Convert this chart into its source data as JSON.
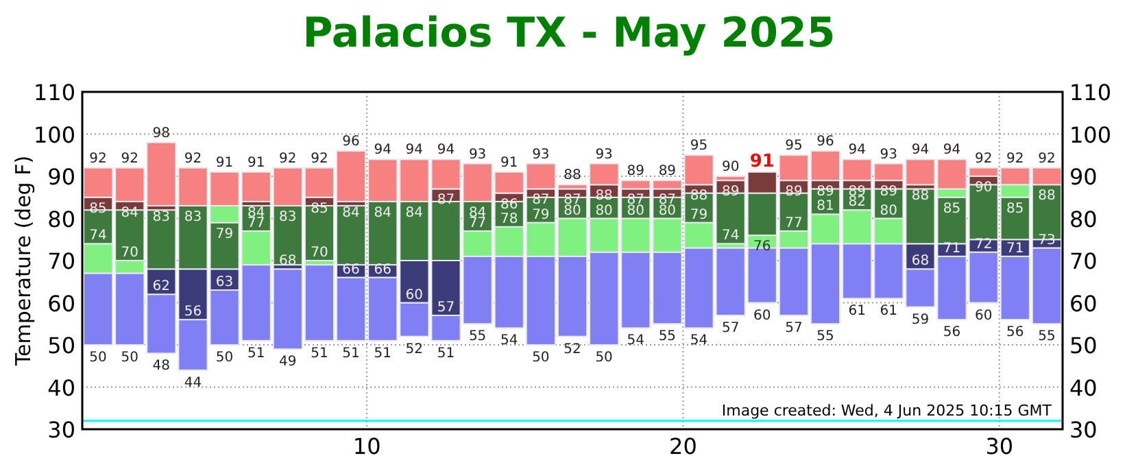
{
  "chart_data": {
    "type": "bar",
    "title": "Palacios TX - May 2025",
    "ylabel": "Temperature (deg F)",
    "x": [
      1,
      2,
      3,
      4,
      5,
      6,
      7,
      8,
      9,
      10,
      11,
      12,
      13,
      14,
      15,
      16,
      17,
      18,
      19,
      20,
      21,
      22,
      23,
      24,
      25,
      26,
      27,
      28,
      29,
      30,
      31
    ],
    "stacked": false,
    "xlim": [
      1,
      32
    ],
    "xticks": [
      10,
      20,
      30
    ],
    "ylim": [
      30,
      110
    ],
    "yticks": [
      30,
      40,
      50,
      60,
      70,
      80,
      90,
      100,
      110
    ],
    "y2lim": [
      30,
      110
    ],
    "y2ticks": [
      30,
      40,
      50,
      60,
      70,
      80,
      90,
      100,
      110
    ],
    "grid": true,
    "series": [
      {
        "color": "#8080f4",
        "base": [
          50,
          50,
          48,
          44,
          50,
          51,
          49,
          51,
          51,
          51,
          52,
          51,
          55,
          54,
          50,
          52,
          50,
          54,
          55,
          54,
          57,
          60,
          57,
          55,
          61,
          61,
          59,
          56,
          60,
          56,
          55
        ],
        "values": [
          17,
          17,
          14,
          12,
          13,
          18,
          19,
          18,
          15,
          15,
          8,
          6,
          16,
          17,
          21,
          19,
          22,
          18,
          17,
          19,
          16,
          13,
          16,
          19,
          13,
          13,
          9,
          15,
          12,
          15,
          18
        ]
      },
      {
        "color": "#3b3b7a",
        "base": [
          null,
          null,
          62,
          56,
          63,
          null,
          68,
          null,
          66,
          66,
          60,
          57,
          null,
          null,
          null,
          null,
          null,
          null,
          null,
          null,
          null,
          null,
          null,
          null,
          null,
          null,
          68,
          71,
          72,
          71,
          73
        ],
        "values": [
          null,
          null,
          6,
          12,
          5,
          null,
          1,
          null,
          3,
          3,
          10,
          13,
          null,
          null,
          null,
          null,
          null,
          null,
          null,
          null,
          null,
          null,
          null,
          null,
          null,
          null,
          6,
          3,
          3,
          4,
          2
        ]
      },
      {
        "color": "#80f080",
        "base": [
          67,
          67,
          null,
          null,
          null,
          69,
          null,
          69,
          null,
          null,
          null,
          null,
          71,
          71,
          71,
          71,
          72,
          72,
          72,
          73,
          73,
          73,
          73,
          74,
          74,
          74,
          null,
          null,
          null,
          null,
          null
        ],
        "values": [
          7,
          3,
          null,
          null,
          null,
          8,
          null,
          1,
          null,
          null,
          null,
          null,
          6,
          7,
          8,
          9,
          8,
          8,
          8,
          6,
          1,
          3,
          4,
          7,
          8,
          6,
          null,
          null,
          null,
          null,
          null
        ]
      },
      {
        "color": "#3e7a3e",
        "base": [
          74,
          70,
          68,
          68,
          68,
          77,
          69,
          70,
          69,
          69,
          70,
          70,
          77,
          78,
          79,
          80,
          80,
          80,
          80,
          79,
          74,
          76,
          77,
          81,
          82,
          80,
          74,
          74,
          75,
          75,
          75
        ],
        "values": [
          8,
          12,
          14,
          15,
          11,
          6,
          14,
          13,
          14,
          15,
          14,
          14,
          7,
          6,
          6,
          5,
          5,
          5,
          5,
          7,
          12,
          10,
          9,
          6,
          5,
          7,
          13,
          11,
          13,
          10,
          13
        ]
      },
      {
        "color": "#80f080",
        "base": [
          null,
          null,
          null,
          null,
          79,
          null,
          null,
          null,
          null,
          null,
          null,
          null,
          null,
          null,
          null,
          null,
          null,
          null,
          null,
          null,
          null,
          null,
          null,
          null,
          null,
          null,
          null,
          85,
          null,
          85,
          null
        ],
        "values": [
          null,
          null,
          null,
          null,
          4,
          null,
          null,
          null,
          null,
          null,
          null,
          null,
          null,
          null,
          null,
          null,
          null,
          null,
          null,
          null,
          null,
          null,
          null,
          null,
          null,
          null,
          null,
          2,
          null,
          3,
          null
        ]
      },
      {
        "color": "#7a3b3b",
        "base": [
          82,
          82,
          82,
          null,
          null,
          83,
          null,
          83,
          83,
          null,
          null,
          84,
          null,
          84,
          85,
          85,
          85,
          85,
          85,
          86,
          86,
          86,
          86,
          87,
          87,
          87,
          87,
          null,
          88,
          null,
          null
        ],
        "values": [
          3,
          2,
          1,
          null,
          null,
          1,
          null,
          2,
          1,
          null,
          null,
          3,
          null,
          2,
          2,
          2,
          3,
          2,
          2,
          2,
          3,
          5,
          3,
          2,
          2,
          2,
          1,
          null,
          2,
          null,
          null
        ]
      },
      {
        "color": "#f78181",
        "base": [
          85,
          84,
          83,
          83,
          83,
          84,
          83,
          85,
          84,
          84,
          84,
          87,
          84,
          86,
          87,
          87,
          88,
          87,
          87,
          88,
          89,
          null,
          89,
          89,
          89,
          89,
          88,
          87,
          90,
          88,
          88
        ],
        "values": [
          7,
          8,
          15,
          9,
          8,
          7,
          9,
          7,
          12,
          10,
          10,
          7,
          9,
          5,
          6,
          1,
          5,
          2,
          2,
          7,
          1,
          null,
          6,
          7,
          5,
          4,
          6,
          7,
          2,
          4,
          4
        ]
      }
    ],
    "ref_lines": [
      {
        "axis": "y",
        "value": 32,
        "color": "#00ffff"
      }
    ],
    "annotations": [
      {
        "text": "92",
        "x": 1,
        "y": 92
      },
      {
        "text": "85",
        "x": 1,
        "y": 85
      },
      {
        "text": "74",
        "x": 1,
        "y": 74
      },
      {
        "text": "50",
        "x": 1,
        "y": 50
      },
      {
        "text": "92",
        "x": 2,
        "y": 92
      },
      {
        "text": "84",
        "x": 2,
        "y": 84
      },
      {
        "text": "70",
        "x": 2,
        "y": 70
      },
      {
        "text": "50",
        "x": 2,
        "y": 50
      },
      {
        "text": "98",
        "x": 3,
        "y": 98
      },
      {
        "text": "83",
        "x": 3,
        "y": 83
      },
      {
        "text": "62",
        "x": 3,
        "y": 62
      },
      {
        "text": "48",
        "x": 3,
        "y": 48
      },
      {
        "text": "92",
        "x": 4,
        "y": 92
      },
      {
        "text": "83",
        "x": 4,
        "y": 83
      },
      {
        "text": "56",
        "x": 4,
        "y": 56
      },
      {
        "text": "44",
        "x": 4,
        "y": 44
      },
      {
        "text": "91",
        "x": 5,
        "y": 91
      },
      {
        "text": "79",
        "x": 5,
        "y": 79
      },
      {
        "text": "63",
        "x": 5,
        "y": 63
      },
      {
        "text": "50",
        "x": 5,
        "y": 50
      },
      {
        "text": "91",
        "x": 6,
        "y": 91
      },
      {
        "text": "84",
        "x": 6,
        "y": 84
      },
      {
        "text": "77",
        "x": 6,
        "y": 77
      },
      {
        "text": "51",
        "x": 6,
        "y": 51
      },
      {
        "text": "92",
        "x": 7,
        "y": 92
      },
      {
        "text": "83",
        "x": 7,
        "y": 83
      },
      {
        "text": "68",
        "x": 7,
        "y": 68
      },
      {
        "text": "49",
        "x": 7,
        "y": 49
      },
      {
        "text": "92",
        "x": 8,
        "y": 92
      },
      {
        "text": "85",
        "x": 8,
        "y": 85
      },
      {
        "text": "70",
        "x": 8,
        "y": 70
      },
      {
        "text": "51",
        "x": 8,
        "y": 51
      },
      {
        "text": "96",
        "x": 9,
        "y": 96
      },
      {
        "text": "84",
        "x": 9,
        "y": 84
      },
      {
        "text": "66",
        "x": 9,
        "y": 66
      },
      {
        "text": "51",
        "x": 9,
        "y": 51
      },
      {
        "text": "94",
        "x": 10,
        "y": 94
      },
      {
        "text": "84",
        "x": 10,
        "y": 84
      },
      {
        "text": "66",
        "x": 10,
        "y": 66
      },
      {
        "text": "51",
        "x": 10,
        "y": 51
      },
      {
        "text": "94",
        "x": 11,
        "y": 94
      },
      {
        "text": "84",
        "x": 11,
        "y": 84
      },
      {
        "text": "60",
        "x": 11,
        "y": 60
      },
      {
        "text": "52",
        "x": 11,
        "y": 52
      },
      {
        "text": "94",
        "x": 12,
        "y": 94
      },
      {
        "text": "87",
        "x": 12,
        "y": 87
      },
      {
        "text": "57",
        "x": 12,
        "y": 57
      },
      {
        "text": "51",
        "x": 12,
        "y": 51
      },
      {
        "text": "93",
        "x": 13,
        "y": 93
      },
      {
        "text": "84",
        "x": 13,
        "y": 84
      },
      {
        "text": "77",
        "x": 13,
        "y": 77
      },
      {
        "text": "55",
        "x": 13,
        "y": 55
      },
      {
        "text": "91",
        "x": 14,
        "y": 91
      },
      {
        "text": "86",
        "x": 14,
        "y": 86
      },
      {
        "text": "78",
        "x": 14,
        "y": 78
      },
      {
        "text": "54",
        "x": 14,
        "y": 54
      },
      {
        "text": "93",
        "x": 15,
        "y": 93
      },
      {
        "text": "87",
        "x": 15,
        "y": 87
      },
      {
        "text": "79",
        "x": 15,
        "y": 79
      },
      {
        "text": "50",
        "x": 15,
        "y": 50
      },
      {
        "text": "88",
        "x": 16,
        "y": 88
      },
      {
        "text": "87",
        "x": 16,
        "y": 87
      },
      {
        "text": "80",
        "x": 16,
        "y": 80
      },
      {
        "text": "52",
        "x": 16,
        "y": 52
      },
      {
        "text": "93",
        "x": 17,
        "y": 93
      },
      {
        "text": "88",
        "x": 17,
        "y": 88
      },
      {
        "text": "80",
        "x": 17,
        "y": 80
      },
      {
        "text": "50",
        "x": 17,
        "y": 50
      },
      {
        "text": "89",
        "x": 18,
        "y": 89
      },
      {
        "text": "87",
        "x": 18,
        "y": 87
      },
      {
        "text": "80",
        "x": 18,
        "y": 80
      },
      {
        "text": "54",
        "x": 18,
        "y": 54
      },
      {
        "text": "89",
        "x": 19,
        "y": 89
      },
      {
        "text": "87",
        "x": 19,
        "y": 87
      },
      {
        "text": "80",
        "x": 19,
        "y": 80
      },
      {
        "text": "55",
        "x": 19,
        "y": 55
      },
      {
        "text": "95",
        "x": 20,
        "y": 95
      },
      {
        "text": "88",
        "x": 20,
        "y": 88
      },
      {
        "text": "79",
        "x": 20,
        "y": 79
      },
      {
        "text": "54",
        "x": 20,
        "y": 54
      },
      {
        "text": "90",
        "x": 21,
        "y": 90
      },
      {
        "text": "89",
        "x": 21,
        "y": 89
      },
      {
        "text": "74",
        "x": 21,
        "y": 74
      },
      {
        "text": "57",
        "x": 21,
        "y": 57
      },
      {
        "text": "91",
        "x": 22,
        "y": 91
      },
      {
        "text": "76",
        "x": 22,
        "y": 76
      },
      {
        "text": "60",
        "x": 22,
        "y": 60
      },
      {
        "text": "95",
        "x": 23,
        "y": 95
      },
      {
        "text": "89",
        "x": 23,
        "y": 89
      },
      {
        "text": "77",
        "x": 23,
        "y": 77
      },
      {
        "text": "57",
        "x": 23,
        "y": 57
      },
      {
        "text": "96",
        "x": 24,
        "y": 96
      },
      {
        "text": "89",
        "x": 24,
        "y": 89
      },
      {
        "text": "81",
        "x": 24,
        "y": 81
      },
      {
        "text": "55",
        "x": 24,
        "y": 55
      },
      {
        "text": "94",
        "x": 25,
        "y": 94
      },
      {
        "text": "89",
        "x": 25,
        "y": 89
      },
      {
        "text": "82",
        "x": 25,
        "y": 82
      },
      {
        "text": "61",
        "x": 25,
        "y": 61
      },
      {
        "text": "93",
        "x": 26,
        "y": 93
      },
      {
        "text": "89",
        "x": 26,
        "y": 89
      },
      {
        "text": "80",
        "x": 26,
        "y": 80
      },
      {
        "text": "61",
        "x": 26,
        "y": 61
      },
      {
        "text": "94",
        "x": 27,
        "y": 94
      },
      {
        "text": "88",
        "x": 27,
        "y": 88
      },
      {
        "text": "68",
        "x": 27,
        "y": 68
      },
      {
        "text": "59",
        "x": 27,
        "y": 59
      },
      {
        "text": "94",
        "x": 28,
        "y": 94
      },
      {
        "text": "85",
        "x": 28,
        "y": 85
      },
      {
        "text": "71",
        "x": 28,
        "y": 71
      },
      {
        "text": "56",
        "x": 28,
        "y": 56
      },
      {
        "text": "92",
        "x": 29,
        "y": 92
      },
      {
        "text": "90",
        "x": 29,
        "y": 90
      },
      {
        "text": "72",
        "x": 29,
        "y": 72
      },
      {
        "text": "60",
        "x": 29,
        "y": 60
      },
      {
        "text": "92",
        "x": 30,
        "y": 92
      },
      {
        "text": "85",
        "x": 30,
        "y": 85
      },
      {
        "text": "71",
        "x": 30,
        "y": 71
      },
      {
        "text": "56",
        "x": 30,
        "y": 56
      },
      {
        "text": "92",
        "x": 31,
        "y": 92
      },
      {
        "text": "88",
        "x": 31,
        "y": 88
      },
      {
        "text": "73",
        "x": 31,
        "y": 73
      },
      {
        "text": "55",
        "x": 31,
        "y": 55
      },
      "Image created: Wed, 4 Jun 2025 10:15 GMT"
    ]
  }
}
